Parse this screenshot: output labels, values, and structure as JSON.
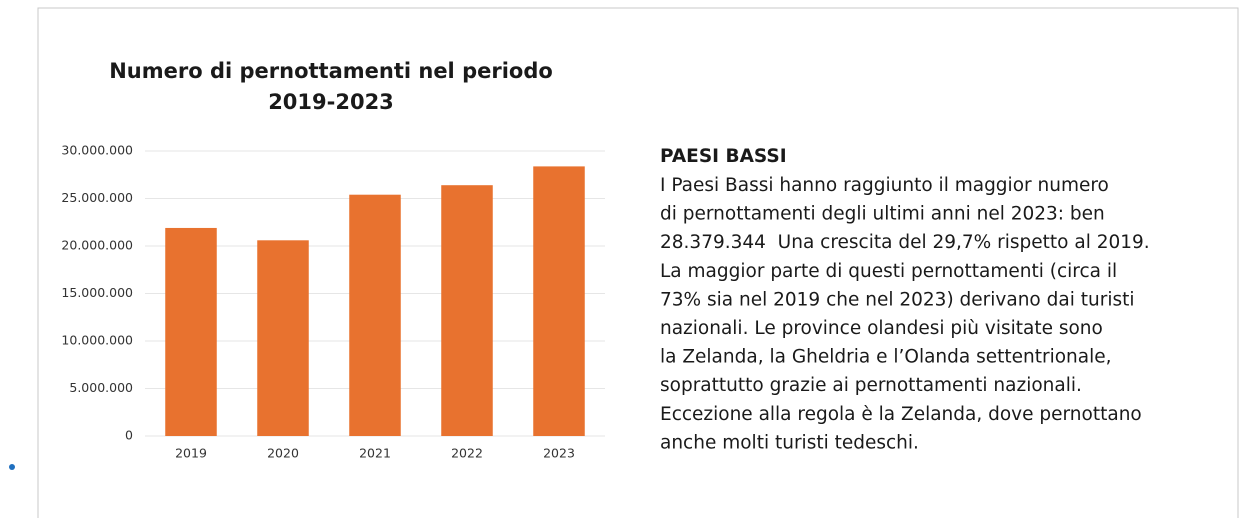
{
  "chart_data": {
    "type": "bar",
    "title": [
      "Numero di pernottamenti nel periodo",
      "2019-2023"
    ],
    "categories": [
      "2019",
      "2020",
      "2021",
      "2022",
      "2023"
    ],
    "values": [
      21900000,
      20600000,
      25400000,
      26400000,
      28379344
    ],
    "color": "#e8722f",
    "ylim": [
      0,
      30000000
    ],
    "yticks": [
      0,
      {
        "value": 5000000,
        "label": "5.000.000"
      },
      {
        "value": 10000000,
        "label": "10.000.000"
      },
      {
        "value": 15000000,
        "label": "15.000.000"
      },
      {
        "value": 20000000,
        "label": "20.000.000"
      },
      {
        "value": 25000000,
        "label": "25.000.000"
      },
      {
        "value": 30000000,
        "label": "30.000.000"
      }
    ],
    "grid": true
  },
  "text": {
    "heading": "PAESI BASSI",
    "lines": [
      "I Paesi Bassi hanno raggiunto il maggior numero",
      "di pernottamenti degli ultimi anni nel 2023: ben",
      "28.379.344  Una crescita del 29,7% rispetto al 2019.",
      "La maggior parte di questi pernottamenti (circa il",
      "73% sia nel 2019 che nel 2023) derivano dai turisti",
      "nazionali. Le province olandesi più visitate sono",
      "la Zelanda, la Gheldria e l’Olanda settentrionale,",
      "soprattutto grazie ai pernottamenti nazionali.",
      "Eccezione alla regola è la Zelanda, dove pernottano",
      "anche molti turisti tedeschi."
    ]
  }
}
